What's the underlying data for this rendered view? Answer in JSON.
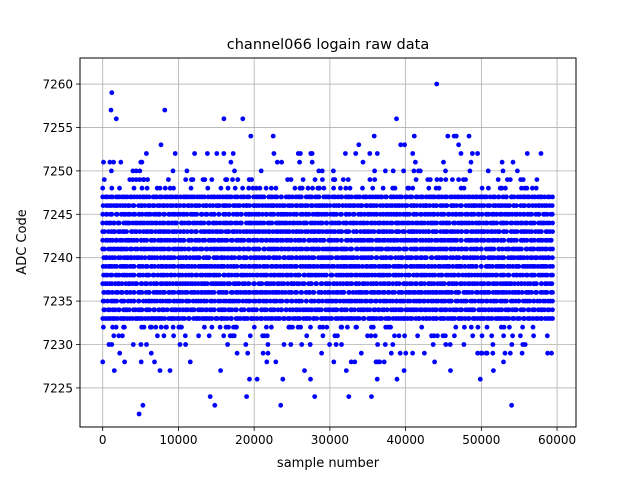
{
  "chart_data": {
    "type": "scatter",
    "title": "channel066 logain raw data",
    "xlabel": "sample number",
    "ylabel": "ADC Code",
    "xlim": [
      -3000,
      62500
    ],
    "ylim": [
      7220.5,
      7263
    ],
    "xticks": [
      0,
      10000,
      20000,
      30000,
      40000,
      50000,
      60000
    ],
    "yticks": [
      7225,
      7230,
      7235,
      7240,
      7245,
      7250,
      7255,
      7260
    ],
    "grid": true,
    "marker_color": "#0000ff",
    "x_range": [
      0,
      59400
    ],
    "dense_band": [
      7226,
      7254
    ],
    "levels": [
      7222,
      7223,
      7224,
      7225,
      7226,
      7227,
      7228,
      7229,
      7230,
      7231,
      7232,
      7233,
      7234,
      7235,
      7236,
      7237,
      7238,
      7239,
      7240,
      7241,
      7242,
      7243,
      7244,
      7245,
      7246,
      7247,
      7248,
      7249,
      7250,
      7251,
      7252,
      7253,
      7254,
      7255,
      7256,
      7257,
      7259,
      7260
    ],
    "outliers": [
      {
        "x": 1200,
        "y": 7259
      },
      {
        "x": 1100,
        "y": 7257
      },
      {
        "x": 1800,
        "y": 7256
      },
      {
        "x": 8200,
        "y": 7257
      },
      {
        "x": 16000,
        "y": 7256
      },
      {
        "x": 18500,
        "y": 7256
      },
      {
        "x": 38800,
        "y": 7256
      },
      {
        "x": 44100,
        "y": 7260
      },
      {
        "x": 4800,
        "y": 7222
      },
      {
        "x": 5300,
        "y": 7223
      },
      {
        "x": 14800,
        "y": 7223
      },
      {
        "x": 23500,
        "y": 7223
      },
      {
        "x": 54000,
        "y": 7223
      },
      {
        "x": 14200,
        "y": 7224
      },
      {
        "x": 19000,
        "y": 7224
      },
      {
        "x": 28000,
        "y": 7224
      },
      {
        "x": 32500,
        "y": 7224
      },
      {
        "x": 35500,
        "y": 7224
      }
    ]
  }
}
